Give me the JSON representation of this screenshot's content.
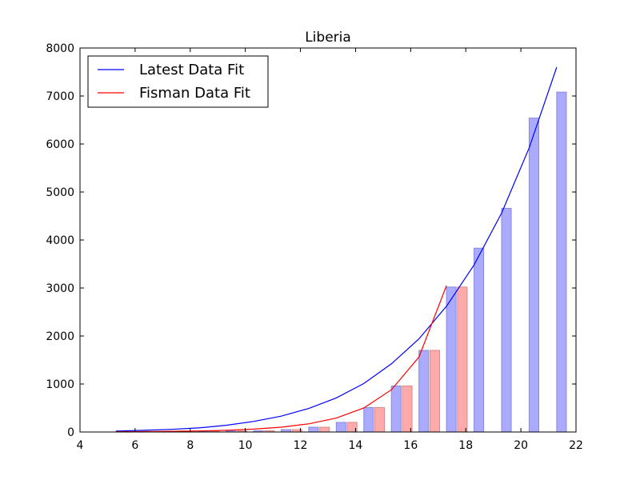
{
  "chart_data": {
    "type": "bar",
    "title": "Liberia",
    "xlabel": "",
    "ylabel": "",
    "xlim": [
      4,
      22
    ],
    "ylim": [
      0,
      8000
    ],
    "x_ticks": [
      "4",
      "6",
      "8",
      "10",
      "12",
      "14",
      "16",
      "18",
      "20",
      "22"
    ],
    "y_ticks": [
      "0",
      "1000",
      "2000",
      "3000",
      "4000",
      "5000",
      "6000",
      "7000",
      "8000"
    ],
    "grid": false,
    "legend_position": "top-left",
    "bar_series": [
      {
        "color": "#aaaaff",
        "edge": "#8888dd",
        "points": [
          {
            "x": 5.3,
            "y": 5
          },
          {
            "x": 6.3,
            "y": 8
          },
          {
            "x": 7.3,
            "y": 12
          },
          {
            "x": 8.3,
            "y": 18
          },
          {
            "x": 9.3,
            "y": 22
          },
          {
            "x": 10.3,
            "y": 25
          },
          {
            "x": 11.3,
            "y": 50
          },
          {
            "x": 12.3,
            "y": 100
          },
          {
            "x": 13.3,
            "y": 200
          },
          {
            "x": 14.3,
            "y": 510
          },
          {
            "x": 15.3,
            "y": 960
          },
          {
            "x": 16.3,
            "y": 1700
          },
          {
            "x": 17.3,
            "y": 3020
          },
          {
            "x": 18.3,
            "y": 3830
          },
          {
            "x": 19.3,
            "y": 4660
          },
          {
            "x": 20.3,
            "y": 6540
          },
          {
            "x": 21.3,
            "y": 7080
          }
        ]
      },
      {
        "color": "#ffaaaa",
        "edge": "#dd8888",
        "points": [
          {
            "x": 5.7,
            "y": 5
          },
          {
            "x": 6.7,
            "y": 8
          },
          {
            "x": 7.7,
            "y": 12
          },
          {
            "x": 8.7,
            "y": 18
          },
          {
            "x": 9.7,
            "y": 22
          },
          {
            "x": 10.7,
            "y": 25
          },
          {
            "x": 11.7,
            "y": 50
          },
          {
            "x": 12.7,
            "y": 100
          },
          {
            "x": 13.7,
            "y": 200
          },
          {
            "x": 14.7,
            "y": 510
          },
          {
            "x": 15.7,
            "y": 960
          },
          {
            "x": 16.7,
            "y": 1700
          },
          {
            "x": 17.7,
            "y": 3020
          }
        ]
      }
    ],
    "bar_width": 0.35,
    "series": [
      {
        "name": "Latest Data Fit",
        "color": "#0000ff",
        "points": [
          {
            "x": 5.3,
            "y": 20
          },
          {
            "x": 6.3,
            "y": 35
          },
          {
            "x": 7.3,
            "y": 55
          },
          {
            "x": 8.3,
            "y": 85
          },
          {
            "x": 9.3,
            "y": 140
          },
          {
            "x": 10.3,
            "y": 220
          },
          {
            "x": 11.3,
            "y": 330
          },
          {
            "x": 12.3,
            "y": 490
          },
          {
            "x": 13.3,
            "y": 710
          },
          {
            "x": 14.3,
            "y": 1010
          },
          {
            "x": 15.3,
            "y": 1420
          },
          {
            "x": 16.3,
            "y": 1940
          },
          {
            "x": 17.3,
            "y": 2620
          },
          {
            "x": 18.3,
            "y": 3480
          },
          {
            "x": 19.3,
            "y": 4560
          },
          {
            "x": 20.3,
            "y": 5920
          },
          {
            "x": 21.3,
            "y": 7600
          }
        ]
      },
      {
        "name": "Fisman Data Fit",
        "color": "#ff0000",
        "points": [
          {
            "x": 5.3,
            "y": 5
          },
          {
            "x": 6.3,
            "y": 8
          },
          {
            "x": 7.3,
            "y": 14
          },
          {
            "x": 8.3,
            "y": 22
          },
          {
            "x": 9.3,
            "y": 35
          },
          {
            "x": 10.3,
            "y": 60
          },
          {
            "x": 11.3,
            "y": 100
          },
          {
            "x": 12.3,
            "y": 170
          },
          {
            "x": 13.3,
            "y": 290
          },
          {
            "x": 14.3,
            "y": 500
          },
          {
            "x": 15.3,
            "y": 880
          },
          {
            "x": 16.3,
            "y": 1560
          },
          {
            "x": 17.3,
            "y": 3050
          }
        ]
      }
    ]
  }
}
